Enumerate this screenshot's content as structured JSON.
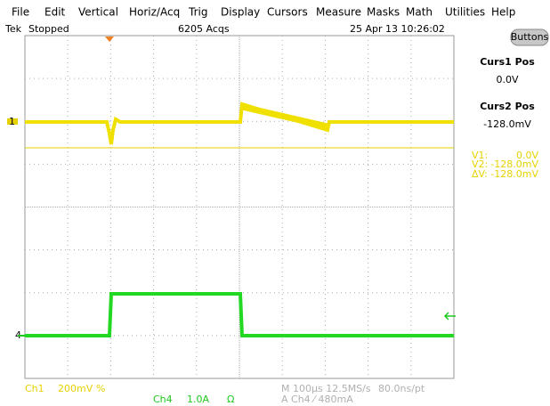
{
  "menu": [
    "File",
    "Edit",
    "Vertical",
    "Horiz/Acq",
    "Trig",
    "Display",
    "Cursors",
    "Measure",
    "Masks",
    "Math",
    "Utilities",
    "Help"
  ],
  "status": {
    "brand": "Tek",
    "state": "Stopped",
    "acqs": "6205 Acqs",
    "datetime": "25 Apr 13 10:26:02"
  },
  "panel": {
    "button": "Buttons",
    "curs1_label": "Curs1 Pos",
    "curs1_value": "0.0V",
    "curs2_label": "Curs2 Pos",
    "curs2_value": "-128.0mV"
  },
  "readout": [
    {
      "label": "V1:",
      "value": "0.0V"
    },
    {
      "label": "V2:",
      "value": "-128.0mV"
    },
    {
      "label": "ΔV:",
      "value": "-128.0mV"
    }
  ],
  "markers": {
    "ch1": "1",
    "ch4": "4"
  },
  "footer": {
    "ch1": "Ch1",
    "ch1_scale": "200mV",
    "ch1_symbol": "%",
    "ch4": "Ch4",
    "ch4_scale": "1.0A",
    "ch4_symbol": "Ω",
    "timebase": "M 100µs 12.5MS/s",
    "resolution": "80.0ns/pt",
    "trigger": "A Ch4 ⁄ 480mA"
  }
}
